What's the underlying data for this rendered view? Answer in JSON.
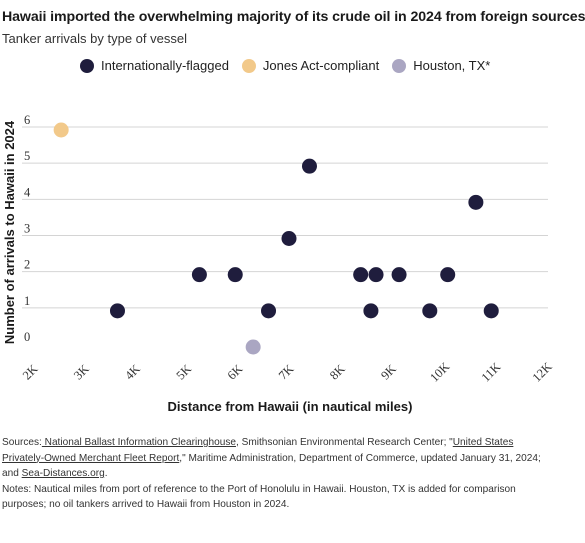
{
  "title": "Hawaii imported the overwhelming majority of its crude oil in 2024 from foreign sources",
  "subtitle": "Tanker arrivals by type of vessel",
  "legend": [
    {
      "label": "Internationally-flagged",
      "color": "#1f1d3d"
    },
    {
      "label": "Jones Act-compliant",
      "color": "#f2c98a"
    },
    {
      "label": "Houston, TX*",
      "color": "#aaa6c2"
    }
  ],
  "chart_data": {
    "type": "scatter",
    "xlabel": "Distance from Hawaii (in nautical miles)",
    "ylabel": "Number of arrivals to Hawaii in 2024",
    "xlim": [
      2000,
      12000
    ],
    "ylim": [
      0,
      6
    ],
    "x_ticks": [
      2000,
      3000,
      4000,
      5000,
      6000,
      7000,
      8000,
      9000,
      10000,
      11000,
      12000
    ],
    "x_tick_labels": [
      "2K",
      "3K",
      "4K",
      "5K",
      "6K",
      "7K",
      "8K",
      "9K",
      "10K",
      "11K",
      "12K"
    ],
    "y_ticks": [
      0,
      1,
      2,
      3,
      4,
      5,
      6
    ],
    "y_tick_labels": [
      "0",
      "1",
      "2",
      "3",
      "4",
      "5",
      "6"
    ],
    "grid": "horizontal",
    "series": [
      {
        "name": "Internationally-flagged",
        "color": "#1f1d3d",
        "points": [
          {
            "x": 3650,
            "y": 1
          },
          {
            "x": 5250,
            "y": 2
          },
          {
            "x": 5950,
            "y": 2
          },
          {
            "x": 6600,
            "y": 1
          },
          {
            "x": 7000,
            "y": 3
          },
          {
            "x": 7400,
            "y": 5
          },
          {
            "x": 8400,
            "y": 2
          },
          {
            "x": 8600,
            "y": 1
          },
          {
            "x": 8700,
            "y": 2
          },
          {
            "x": 9150,
            "y": 2
          },
          {
            "x": 9750,
            "y": 1
          },
          {
            "x": 10100,
            "y": 2
          },
          {
            "x": 10650,
            "y": 4
          },
          {
            "x": 10950,
            "y": 1
          }
        ]
      },
      {
        "name": "Jones Act-compliant",
        "color": "#f2c98a",
        "points": [
          {
            "x": 2550,
            "y": 6
          }
        ]
      },
      {
        "name": "Houston, TX*",
        "color": "#aaa6c2",
        "points": [
          {
            "x": 6300,
            "y": 0
          }
        ]
      }
    ]
  },
  "footer": {
    "sources_label": "Sources:",
    "link1": " National Ballast Information Clearinghouse",
    "text1": ", Smithsonian Environmental Research Center; \"",
    "link2": "United States Privately-Owned Merchant Fleet Report",
    "text2": ",\" Maritime Administration, Department of Commerce, updated January 31, 2024; and ",
    "link3": "Sea-Distances.org",
    "text3": ".",
    "notes": "Notes: Nautical miles from port of reference to the Port of Honolulu in Hawaii. Houston, TX is added for comparison purposes; no oil tankers arrived to Hawaii from Houston in 2024."
  }
}
